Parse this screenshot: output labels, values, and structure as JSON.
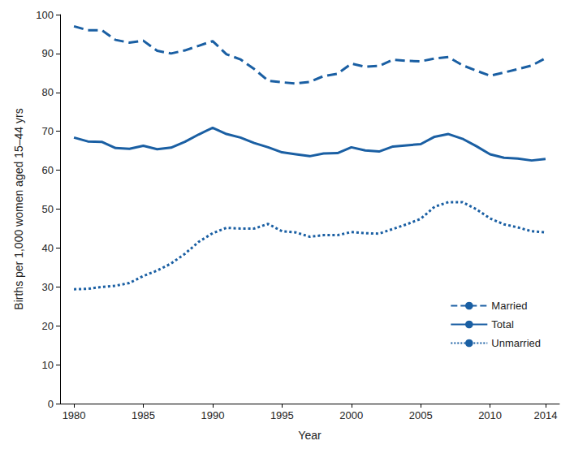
{
  "chart_data": {
    "type": "line",
    "x_label": "Year",
    "y_label": "Births per 1,000 women aged 15–44 yrs",
    "x": [
      1980,
      1981,
      1982,
      1983,
      1984,
      1985,
      1986,
      1987,
      1988,
      1989,
      1990,
      1991,
      1992,
      1993,
      1994,
      1995,
      1996,
      1997,
      1998,
      1999,
      2000,
      2001,
      2002,
      2003,
      2004,
      2005,
      2006,
      2007,
      2008,
      2009,
      2010,
      2011,
      2012,
      2013,
      2014
    ],
    "series": [
      {
        "name": "Married",
        "color": "#1a5fa3",
        "line_style": "dashed",
        "values": [
          97,
          96,
          96,
          93.5,
          92.8,
          93.3,
          90.7,
          90,
          90.8,
          92,
          93.2,
          89.8,
          88.5,
          86,
          83,
          82.6,
          82.3,
          82.7,
          84.2,
          84.8,
          87.4,
          86.6,
          86.8,
          88.4,
          88.1,
          88,
          88.7,
          89.1,
          87,
          85.6,
          84.3,
          85.1,
          86,
          86.9,
          88.8
        ]
      },
      {
        "name": "Total",
        "color": "#1a5fa3",
        "line_style": "solid",
        "values": [
          68.4,
          67.4,
          67.3,
          65.7,
          65.5,
          66.3,
          65.4,
          65.8,
          67.3,
          69.2,
          70.9,
          69.3,
          68.4,
          67,
          65.9,
          64.6,
          64.1,
          63.6,
          64.3,
          64.4,
          65.9,
          65.1,
          64.8,
          66.1,
          66.4,
          66.7,
          68.6,
          69.3,
          68.1,
          66.2,
          64.1,
          63.2,
          63,
          62.5,
          62.9
        ]
      },
      {
        "name": "Unmarried",
        "color": "#1a5fa3",
        "line_style": "dotted",
        "values": [
          29.4,
          29.5,
          30,
          30.3,
          31,
          32.8,
          34.2,
          36,
          38.5,
          41.6,
          43.8,
          45.2,
          45,
          45,
          46.2,
          44.3,
          44,
          42.9,
          43.3,
          43.3,
          44.1,
          43.8,
          43.7,
          44.9,
          46.1,
          47.5,
          50.6,
          51.8,
          51.8,
          50,
          47.6,
          46.1,
          45.3,
          44.3,
          44
        ]
      }
    ],
    "xlim": [
      1979,
      2015
    ],
    "xticks": [
      1980,
      1985,
      1990,
      1995,
      2000,
      2005,
      2010,
      2014
    ],
    "ylim": [
      0,
      100
    ],
    "yticks": [
      0,
      10,
      20,
      30,
      40,
      50,
      60,
      70,
      80,
      90,
      100
    ],
    "grid": false,
    "legend": "lower right"
  }
}
